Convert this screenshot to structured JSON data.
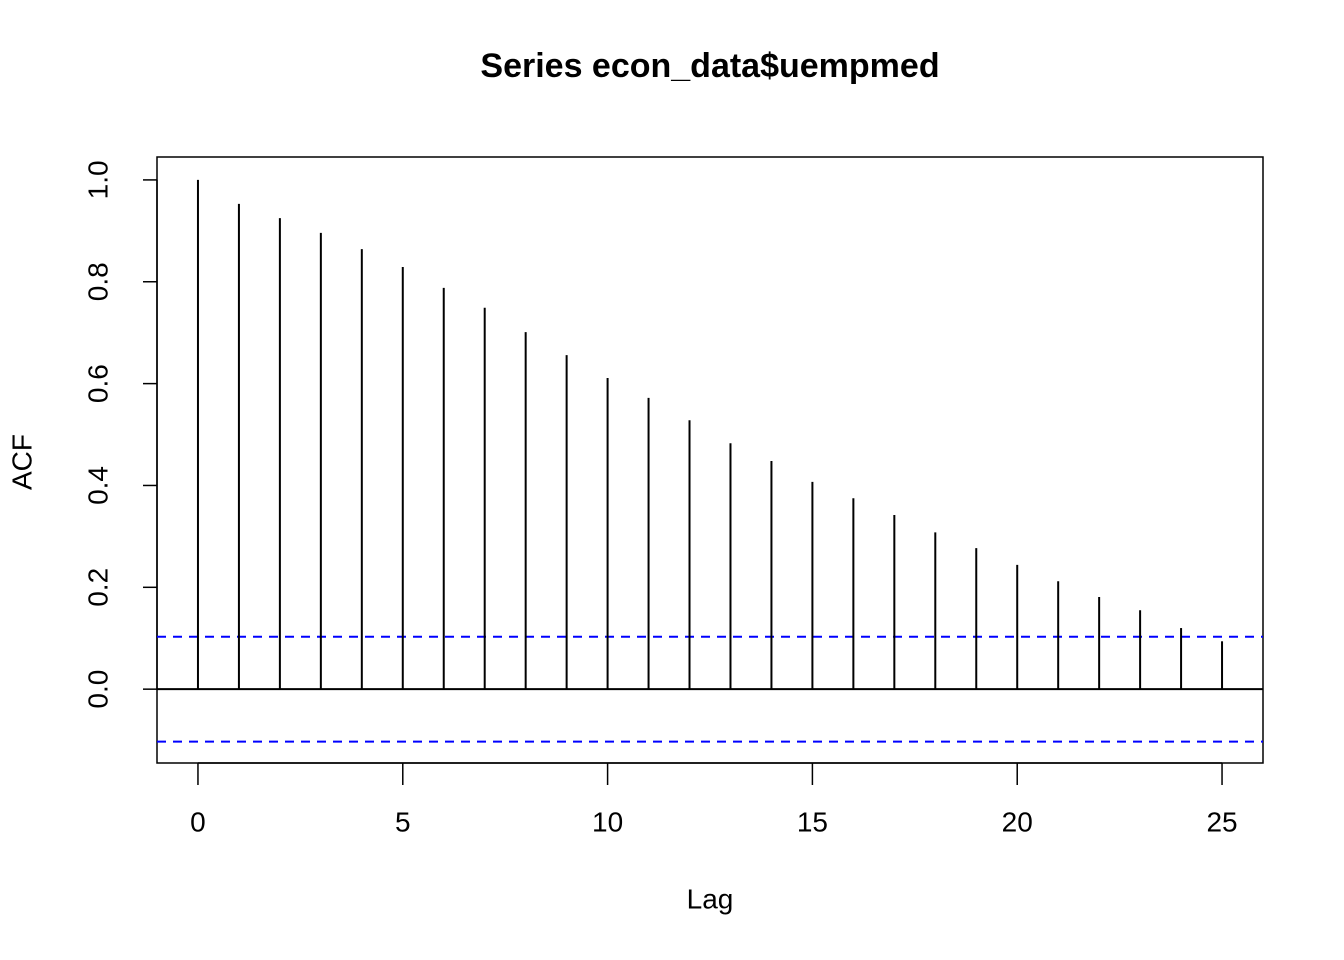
{
  "chart_data": {
    "type": "acf",
    "title": "Series  econ_data$uempmed",
    "xlabel": "Lag",
    "ylabel": "ACF",
    "x": [
      0,
      1,
      2,
      3,
      4,
      5,
      6,
      7,
      8,
      9,
      10,
      11,
      12,
      13,
      14,
      15,
      16,
      17,
      18,
      19,
      20,
      21,
      22,
      23,
      24,
      25
    ],
    "values": [
      1.0,
      0.953,
      0.925,
      0.896,
      0.864,
      0.829,
      0.788,
      0.749,
      0.701,
      0.656,
      0.611,
      0.572,
      0.528,
      0.483,
      0.448,
      0.407,
      0.375,
      0.342,
      0.308,
      0.277,
      0.244,
      0.212,
      0.181,
      0.155,
      0.12,
      0.094
    ],
    "color": "#000000",
    "ci": [
      -0.103,
      0.103
    ],
    "ci_color": "#0000ff",
    "xlim": [
      -1,
      26
    ],
    "ylim": [
      -0.145,
      1.045
    ],
    "xticks": [
      0,
      5,
      10,
      15,
      20,
      25
    ],
    "yticks": [
      {
        "value": 0,
        "label": "0.0"
      },
      0.2,
      0.4,
      0.6,
      0.8,
      {
        "value": 1,
        "label": "1.0"
      }
    ]
  }
}
